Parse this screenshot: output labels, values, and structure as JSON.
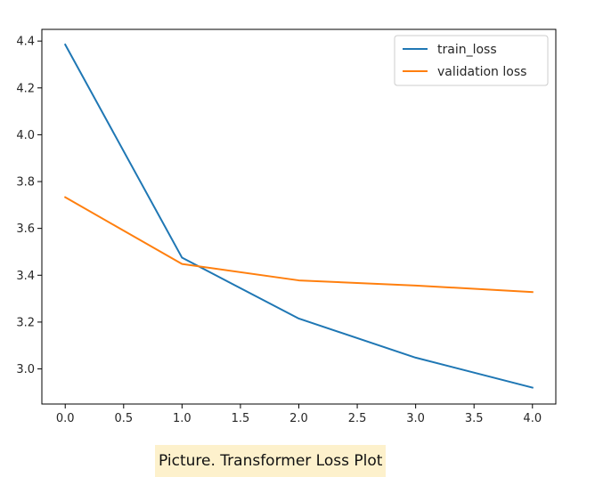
{
  "caption": "Picture. Transformer Loss Plot",
  "chart_data": {
    "type": "line",
    "title": "",
    "xlabel": "",
    "ylabel": "",
    "xlim": [
      -0.2,
      4.2
    ],
    "ylim": [
      2.85,
      4.45
    ],
    "xticks": [
      0.0,
      0.5,
      1.0,
      1.5,
      2.0,
      2.5,
      3.0,
      3.5,
      4.0
    ],
    "xtick_labels": [
      "0.0",
      "0.5",
      "1.0",
      "1.5",
      "2.0",
      "2.5",
      "3.0",
      "3.5",
      "4.0"
    ],
    "yticks": [
      3.0,
      3.2,
      3.4,
      3.6,
      3.8,
      4.0,
      4.2,
      4.4
    ],
    "ytick_labels": [
      "3.0",
      "3.2",
      "3.4",
      "3.6",
      "3.8",
      "4.0",
      "4.2",
      "4.4"
    ],
    "grid": false,
    "legend_position": "top-right",
    "x": [
      0,
      1,
      2,
      3,
      4
    ],
    "series": [
      {
        "name": "train_loss",
        "color": "#1f77b4",
        "values": [
          4.385,
          3.475,
          3.215,
          3.048,
          2.92
        ]
      },
      {
        "name": "validation loss",
        "color": "#ff7f0e",
        "values": [
          3.733,
          3.448,
          3.378,
          3.356,
          3.328
        ]
      }
    ]
  }
}
